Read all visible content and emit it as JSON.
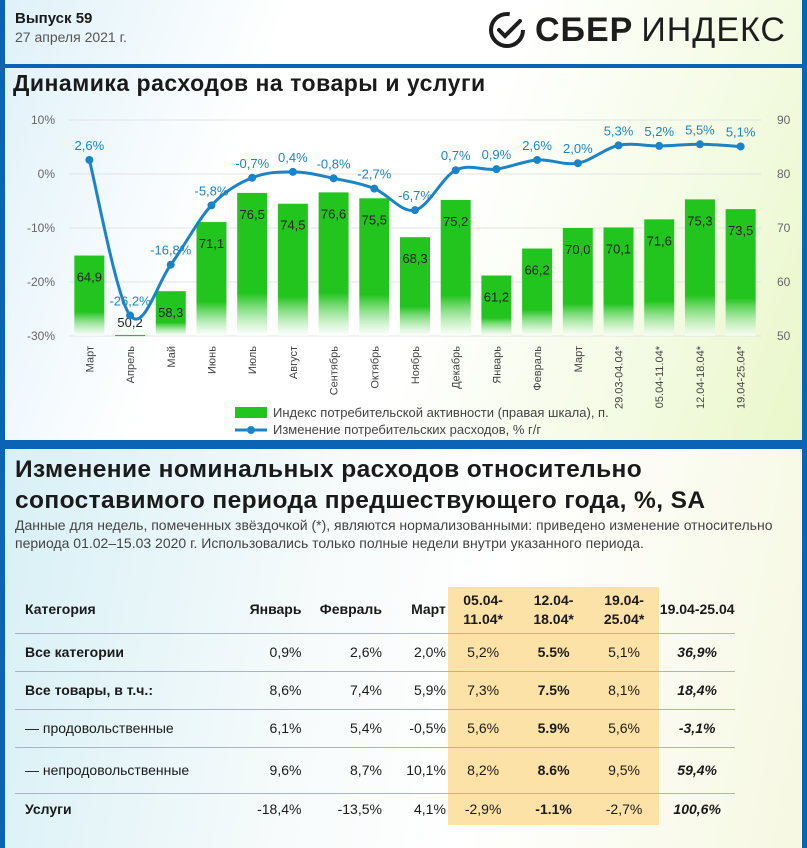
{
  "header": {
    "issue": "Выпуск 59",
    "date": "27 апреля 2021 г.",
    "brand_bold": "СБЕР",
    "brand_light": "ИНДЕКС"
  },
  "colors": {
    "bar": "#22c41e",
    "line": "#1c84c6",
    "highlight": "#fde2a7",
    "frame": "#0a63b5"
  },
  "chart_data": {
    "type": "bar",
    "title": "Динамика расходов на товары и услуги",
    "categories": [
      "Март",
      "Апрель",
      "Май",
      "Июнь",
      "Июль",
      "Август",
      "Сентябрь",
      "Октябрь",
      "Ноябрь",
      "Декабрь",
      "Январь",
      "Февраль",
      "Март",
      "29.03-04.04*",
      "05.04-11.04*",
      "12.04-18.04*",
      "19.04-25.04*"
    ],
    "left_axis": {
      "ylim": [
        -30,
        10
      ],
      "ticks": [
        "10%",
        "0%",
        "-10%",
        "-20%",
        "-30%"
      ]
    },
    "right_axis": {
      "ylim": [
        50,
        90
      ],
      "ticks": [
        "90",
        "80",
        "70",
        "60",
        "50"
      ]
    },
    "series": [
      {
        "name": "Индекс потребительской активности (правая шкала), п.",
        "type": "bar",
        "axis": "right",
        "values": [
          64.9,
          50.2,
          58.3,
          71.1,
          76.5,
          74.5,
          76.6,
          75.5,
          68.3,
          75.2,
          61.2,
          66.2,
          70.0,
          70.1,
          71.6,
          75.3,
          73.5
        ],
        "labels": [
          "64,9",
          "50,2",
          "58,3",
          "71,1",
          "76,5",
          "74,5",
          "76,6",
          "75,5",
          "68,3",
          "75,2",
          "61,2",
          "66,2",
          "70,0",
          "70,1",
          "71,6",
          "75,3",
          "73,5"
        ]
      },
      {
        "name": "Изменение потребительских расходов, % г/г",
        "type": "line",
        "axis": "left",
        "values": [
          2.6,
          -26.2,
          -16.8,
          -5.8,
          -0.7,
          0.4,
          -0.8,
          -2.7,
          -6.7,
          0.7,
          0.9,
          2.6,
          2.0,
          5.3,
          5.2,
          5.5,
          5.1
        ],
        "labels": [
          "2,6%",
          "-26,2%",
          "-16,8%",
          "-5,8%",
          "-0,7%",
          "0,4%",
          "-0,8%",
          "-2,7%",
          "-6,7%",
          "0,7%",
          "0,9%",
          "2,6%",
          "2,0%",
          "5,3%",
          "5,2%",
          "5,5%",
          "5,1%"
        ]
      }
    ],
    "legend": "bottom-center"
  },
  "section2": {
    "title_line1": "Изменение номинальных расходов относительно",
    "title_line2": "сопоставимого периода предшествующего года, %, SA",
    "note": "Данные для недель, помеченных звёздочкой (*), являются нормализованными: приведено изменение относительно периода 01.02–15.03 2020 г. Использовались только полные недели внутри указанного периода."
  },
  "table": {
    "headers": [
      "Категория",
      "Январь",
      "Февраль",
      "Март",
      "05.04-11.04*",
      "12.04-18.04*",
      "19.04-25.04*",
      "19.04-25.04"
    ],
    "rows": [
      [
        "Все категории",
        "0,9%",
        "2,6%",
        "2,0%",
        "5,2%",
        "5.5%",
        "5,1%",
        "36,9%"
      ],
      [
        "Все товары, в т.ч.:",
        "8,6%",
        "7,4%",
        "5,9%",
        "7,3%",
        "7.5%",
        "8,1%",
        "18,4%"
      ],
      [
        "— продовольственные",
        "6,1%",
        "5,4%",
        "-0,5%",
        "5,6%",
        "5.9%",
        "5,6%",
        "-3,1%"
      ],
      [
        "— непродовольственные",
        "9,6%",
        "8,7%",
        "10,1%",
        "8,2%",
        "8.6%",
        "9,5%",
        "59,4%"
      ],
      [
        "Услуги",
        "-18,4%",
        "-13,5%",
        "4,1%",
        "-2,9%",
        "-1.1%",
        "-2,7%",
        "100,6%"
      ]
    ]
  }
}
